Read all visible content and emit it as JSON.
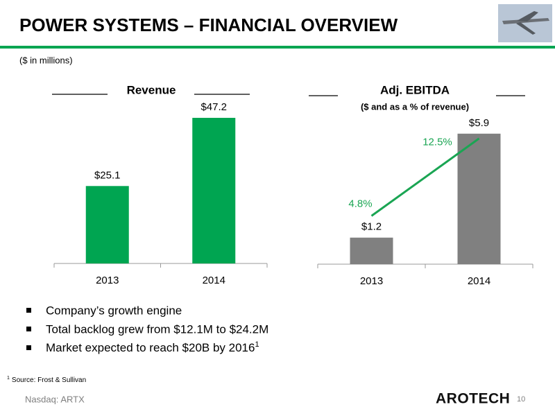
{
  "header": {
    "title": "POWER SYSTEMS – FINANCIAL OVERVIEW",
    "units": "($ in millions)"
  },
  "chart_data": [
    {
      "type": "bar",
      "title": "Revenue",
      "categories": [
        "2013",
        "2014"
      ],
      "values": [
        25.1,
        47.2
      ],
      "value_labels": [
        "$25.1",
        "$47.2"
      ],
      "color": "#00a551"
    },
    {
      "type": "bar_line",
      "title": "Adj. EBITDA",
      "subtitle": "($ and as a % of revenue)",
      "categories": [
        "2013",
        "2014"
      ],
      "series": [
        {
          "type": "bar",
          "color": "#808080",
          "values": [
            1.2,
            5.9
          ],
          "value_labels": [
            "$1.2",
            "$5.9"
          ]
        },
        {
          "type": "line",
          "axis": "y2",
          "color": "#1aa553",
          "values": [
            4.8,
            12.5
          ],
          "value_labels": [
            "4.8%",
            "12.5%"
          ]
        }
      ]
    }
  ],
  "bullets": [
    {
      "text": "Company’s growth engine"
    },
    {
      "text": "Total backlog grew from $12.1M to $24.2M"
    },
    {
      "text": "Market expected to reach $20B by 2016",
      "footnote_ref": "1"
    }
  ],
  "footnote": {
    "marker": "1",
    "text": "Source:  Frost & Sullivan"
  },
  "footer": {
    "ticker": "Nasdaq: ARTX",
    "logo": "AROTECH",
    "page": "10"
  }
}
